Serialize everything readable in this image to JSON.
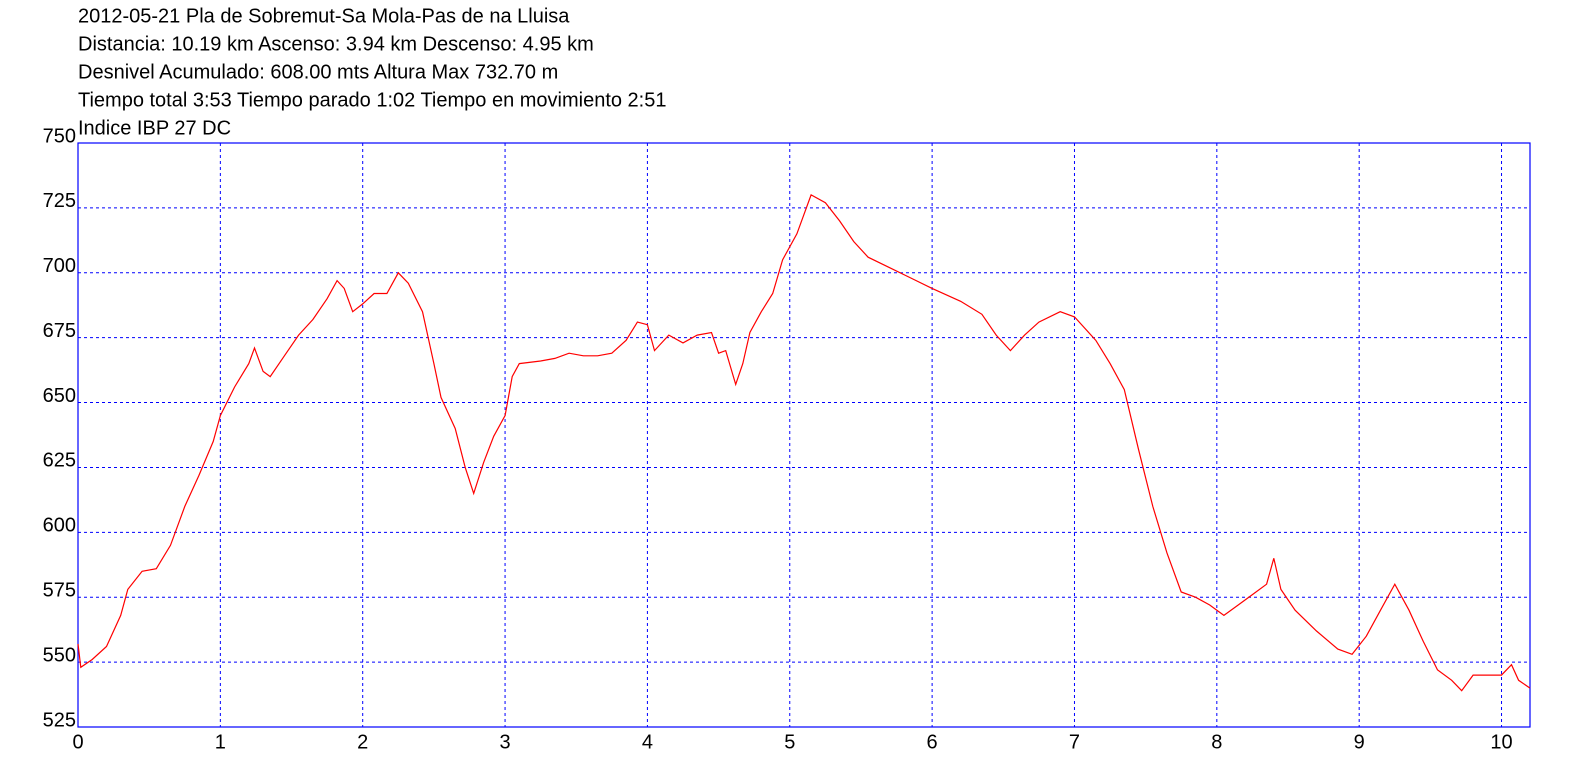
{
  "chart_data": {
    "type": "line",
    "title": "2012-05-21 Pla de Sobremut-Sa Mola-Pas de na Lluisa",
    "subtitle": [
      "Distancia: 10.19 km Ascenso: 3.94 km Descenso: 4.95 km",
      "Desnivel Acumulado: 608.00 mts  Altura Max 732.70 m",
      "Tiempo total 3:53 Tiempo parado 1:02 Tiempo en movimiento 2:51",
      "Indice IBP 27 DC"
    ],
    "xlim": [
      0,
      10.2
    ],
    "ylim": [
      525,
      750
    ],
    "xticks": [
      0,
      1,
      2,
      3,
      4,
      5,
      6,
      7,
      8,
      9,
      10
    ],
    "yticks": [
      525,
      550,
      575,
      600,
      625,
      650,
      675,
      700,
      725,
      750
    ],
    "grid": true,
    "grid_color": "#0000ff",
    "frame_color": "#0000ff",
    "series": [
      {
        "color": "#ff0000",
        "x": [
          0,
          0.02,
          0.1,
          0.2,
          0.3,
          0.35,
          0.45,
          0.55,
          0.65,
          0.75,
          0.85,
          0.95,
          1.0,
          1.1,
          1.2,
          1.24,
          1.3,
          1.35,
          1.45,
          1.55,
          1.65,
          1.75,
          1.82,
          1.87,
          1.93,
          2.0,
          2.08,
          2.17,
          2.25,
          2.32,
          2.42,
          2.5,
          2.55,
          2.65,
          2.72,
          2.78,
          2.85,
          2.92,
          3.0,
          3.05,
          3.1,
          3.25,
          3.35,
          3.45,
          3.55,
          3.65,
          3.75,
          3.85,
          3.93,
          4.0,
          4.05,
          4.15,
          4.25,
          4.35,
          4.45,
          4.5,
          4.55,
          4.62,
          4.67,
          4.72,
          4.8,
          4.88,
          4.95,
          5.05,
          5.15,
          5.25,
          5.35,
          5.45,
          5.55,
          5.7,
          5.85,
          6.0,
          6.2,
          6.35,
          6.45,
          6.55,
          6.65,
          6.75,
          6.9,
          7.0,
          7.15,
          7.25,
          7.35,
          7.45,
          7.55,
          7.65,
          7.75,
          7.85,
          7.95,
          8.05,
          8.15,
          8.25,
          8.35,
          8.4,
          8.45,
          8.55,
          8.7,
          8.85,
          8.95,
          9.05,
          9.15,
          9.25,
          9.35,
          9.45,
          9.55,
          9.65,
          9.72,
          9.8,
          9.9,
          10.0,
          10.07,
          10.12,
          10.2
        ],
        "values": [
          557,
          548,
          551,
          556,
          568,
          578,
          585,
          586,
          595,
          610,
          622,
          635,
          645,
          656,
          665,
          671,
          662,
          660,
          668,
          676,
          682,
          690,
          697,
          694,
          685,
          688,
          692,
          692,
          700,
          696,
          685,
          665,
          652,
          640,
          625,
          615,
          627,
          637,
          645,
          660,
          665,
          666,
          667,
          669,
          668,
          668,
          669,
          674,
          681,
          680,
          670,
          676,
          673,
          676,
          677,
          669,
          670,
          657,
          665,
          677,
          685,
          692,
          705,
          715,
          730,
          727,
          720,
          712,
          706,
          702,
          698,
          694,
          689,
          684,
          676,
          670,
          676,
          681,
          685,
          683,
          674,
          665,
          655,
          632,
          610,
          592,
          577,
          575,
          572,
          568,
          572,
          576,
          580,
          590,
          578,
          570,
          562,
          555,
          553,
          560,
          570,
          580,
          570,
          558,
          547,
          543,
          539,
          545,
          545,
          545,
          549,
          543,
          540
        ]
      }
    ]
  }
}
